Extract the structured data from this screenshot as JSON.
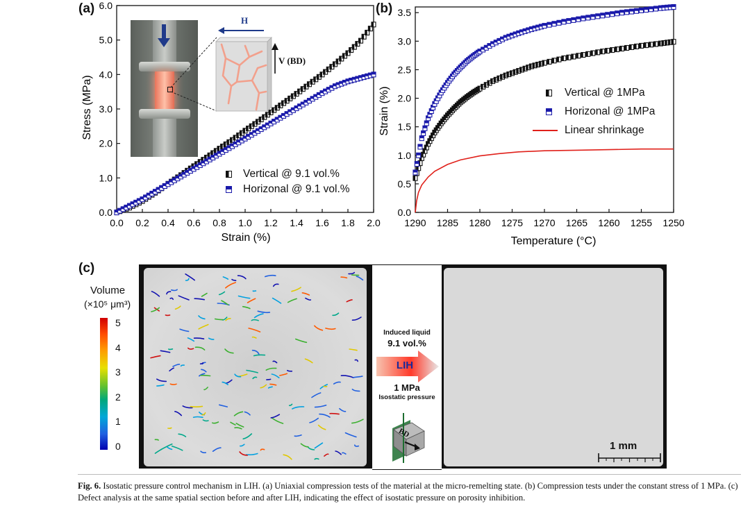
{
  "panels": {
    "a": {
      "letter": "(a)",
      "inset_labels": {
        "h": "H",
        "v": "V (BD)"
      },
      "legend": [
        "Vertical @ 9.1 vol.%",
        "Horizonal @ 9.1 vol.%"
      ]
    },
    "b": {
      "letter": "(b)",
      "legend": [
        "Vertical @ 1MPa",
        "Horizonal @ 1MPa",
        "Linear shrinkage"
      ]
    },
    "c": {
      "letter": "(c)",
      "colorbar": {
        "title_line1": "Volume",
        "title_line2": "(×10⁵ μm³)",
        "ticks": [
          "5",
          "4",
          "3",
          "2",
          "1",
          "0"
        ]
      },
      "arrow_text": {
        "line1": "Induced liquid",
        "line2": "9.1 vol.%",
        "label": "LIH",
        "line3": "1 MPa",
        "line4": "Isostatic pressure"
      },
      "bd_label": "BD",
      "scalebar": "1 mm"
    }
  },
  "chart_data": [
    {
      "type": "scatter",
      "panel": "a",
      "xlabel": "Strain (%)",
      "ylabel": "Stress (MPa)",
      "xlim": [
        0.0,
        2.0
      ],
      "ylim": [
        0.0,
        6.0
      ],
      "xticks": [
        "0.0",
        "0.2",
        "0.4",
        "0.6",
        "0.8",
        "1.0",
        "1.2",
        "1.4",
        "1.6",
        "1.8",
        "2.0"
      ],
      "yticks": [
        "0.0",
        "1.0",
        "2.0",
        "3.0",
        "4.0",
        "5.0",
        "6.0"
      ],
      "series": [
        {
          "name": "Vertical @ 9.1 vol.%",
          "color": "#111111",
          "x": [
            0,
            0.1,
            0.2,
            0.3,
            0.4,
            0.5,
            0.6,
            0.7,
            0.8,
            0.9,
            1.0,
            1.1,
            1.2,
            1.3,
            1.4,
            1.5,
            1.6,
            1.7,
            1.8,
            1.9,
            2.0
          ],
          "y": [
            0.0,
            0.14,
            0.33,
            0.57,
            0.83,
            1.08,
            1.34,
            1.59,
            1.85,
            2.1,
            2.37,
            2.63,
            2.9,
            3.17,
            3.44,
            3.72,
            4.0,
            4.3,
            4.62,
            4.98,
            5.45
          ]
        },
        {
          "name": "Horizonal @ 9.1 vol.%",
          "color": "#1a1aaa",
          "x": [
            0,
            0.1,
            0.2,
            0.3,
            0.4,
            0.5,
            0.6,
            0.7,
            0.8,
            0.9,
            1.0,
            1.1,
            1.2,
            1.3,
            1.4,
            1.5,
            1.6,
            1.7,
            1.8,
            1.9,
            2.0
          ],
          "y": [
            0.0,
            0.19,
            0.38,
            0.6,
            0.82,
            1.04,
            1.26,
            1.48,
            1.7,
            1.92,
            2.14,
            2.36,
            2.58,
            2.8,
            3.02,
            3.24,
            3.46,
            3.66,
            3.8,
            3.9,
            4.0
          ]
        }
      ]
    },
    {
      "type": "scatter",
      "panel": "b",
      "xlabel": "Temperature (°C)",
      "ylabel": "Strain (%)",
      "xlim": [
        1290,
        1250
      ],
      "ylim": [
        0.0,
        3.6
      ],
      "xticks": [
        "1290",
        "1285",
        "1280",
        "1275",
        "1270",
        "1265",
        "1260",
        "1255",
        "1250"
      ],
      "yticks": [
        "0.0",
        "0.5",
        "1.0",
        "1.5",
        "2.0",
        "2.5",
        "3.0",
        "3.5"
      ],
      "series": [
        {
          "name": "Vertical @ 1MPa",
          "color": "#111111",
          "x": [
            1290,
            1289,
            1288,
            1287,
            1286,
            1285,
            1284,
            1283,
            1282,
            1281,
            1280,
            1278,
            1276,
            1274,
            1272,
            1270,
            1267,
            1264,
            1261,
            1258,
            1255,
            1252,
            1250
          ],
          "y": [
            0.6,
            0.95,
            1.2,
            1.4,
            1.56,
            1.7,
            1.82,
            1.93,
            2.02,
            2.1,
            2.17,
            2.3,
            2.4,
            2.48,
            2.56,
            2.62,
            2.7,
            2.76,
            2.82,
            2.87,
            2.92,
            2.96,
            2.99
          ]
        },
        {
          "name": "Horizonal @ 1MPa",
          "color": "#1a1aaa",
          "x": [
            1290,
            1289,
            1288,
            1287,
            1286,
            1285,
            1284,
            1283,
            1282,
            1281,
            1280,
            1278,
            1276,
            1274,
            1272,
            1270,
            1267,
            1264,
            1261,
            1258,
            1255,
            1252,
            1250
          ],
          "y": [
            0.7,
            1.3,
            1.65,
            1.9,
            2.1,
            2.27,
            2.42,
            2.54,
            2.65,
            2.74,
            2.82,
            2.95,
            3.06,
            3.14,
            3.21,
            3.27,
            3.34,
            3.4,
            3.45,
            3.5,
            3.54,
            3.58,
            3.6
          ]
        },
        {
          "name": "Linear shrinkage",
          "color": "#e0201a",
          "line": true,
          "x": [
            1290,
            1289.8,
            1289.5,
            1289,
            1288,
            1287,
            1285,
            1283,
            1280,
            1277,
            1274,
            1270,
            1265,
            1260,
            1255,
            1250
          ],
          "y": [
            0.0,
            0.2,
            0.35,
            0.48,
            0.62,
            0.72,
            0.84,
            0.92,
            0.99,
            1.03,
            1.06,
            1.08,
            1.09,
            1.1,
            1.11,
            1.11
          ]
        }
      ]
    }
  ],
  "caption": {
    "fig_label": "Fig. 6.",
    "text": "Isostatic pressure control mechanism in LIH. (a) Uniaxial compression tests of the material at the micro-remelting state. (b) Compression tests under the constant stress of 1 MPa. (c) Defect analysis at the same spatial section before and after LIH, indicating the effect of isostatic pressure on porosity inhibition."
  }
}
